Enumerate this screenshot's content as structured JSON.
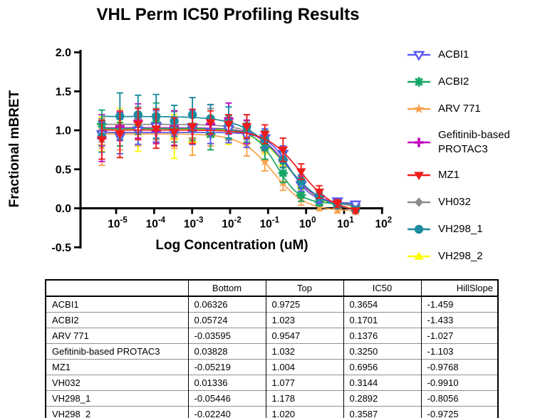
{
  "title": "VHL Perm IC50 Profiling Results",
  "chart_data": {
    "type": "scatter+line dose-response",
    "title": "VHL Perm IC50 Profiling Results",
    "xlabel": "Log Concentration (uM)",
    "ylabel": "Fractional mBRET",
    "x_scale": "log10",
    "x_tick_exponents": [
      -5,
      -4,
      -3,
      -2,
      -1,
      0,
      1,
      2
    ],
    "y_tick_labels": [
      "2.0",
      "1.5",
      "1.0",
      "0.5",
      "0.0",
      "-0.5"
    ],
    "y_ticks": [
      2.0,
      1.5,
      1.0,
      0.5,
      0.0,
      -0.5
    ],
    "ylim": [
      -0.5,
      2.0
    ],
    "grid": false,
    "legend_position": "right",
    "x_log10": [
      -5.377,
      -4.9,
      -4.423,
      -3.946,
      -3.469,
      -2.992,
      -2.515,
      -2.038,
      -1.561,
      -1.084,
      -0.607,
      -0.13,
      0.347,
      0.824,
      1.301
    ],
    "draw_order": [
      7,
      2,
      5,
      3,
      1,
      0,
      6,
      4
    ],
    "series": [
      {
        "name": "ACBI1",
        "color": "#5a5af0",
        "marker": "triangle-down-open",
        "fit": {
          "bottom": 0.06326,
          "top": 0.9725,
          "ic50": 0.3654,
          "hillslope": -1.459
        },
        "y": [
          0.95,
          0.92,
          1.0,
          1.05,
          0.97,
          1.04,
          0.98,
          1.02,
          0.93,
          0.9,
          0.7,
          0.3,
          0.12,
          0.09,
          0.05
        ],
        "err": [
          0.15,
          0.22,
          0.18,
          0.2,
          0.16,
          0.22,
          0.15,
          0.18,
          0.15,
          0.12,
          0.1,
          0.08,
          0.05,
          0.04,
          0.03
        ]
      },
      {
        "name": "ACBI2",
        "color": "#16a566",
        "marker": "asterisk",
        "fit": {
          "bottom": 0.05724,
          "top": 1.023,
          "ic50": 0.1701,
          "hillslope": -1.433
        },
        "y": [
          1.08,
          0.95,
          1.02,
          1.1,
          1.0,
          1.05,
          0.95,
          1.04,
          0.97,
          0.78,
          0.45,
          0.17,
          0.08,
          0.06,
          0.03
        ],
        "err": [
          0.18,
          0.15,
          0.2,
          0.25,
          0.15,
          0.18,
          0.2,
          0.15,
          0.12,
          0.15,
          0.12,
          0.08,
          0.05,
          0.04,
          0.03
        ]
      },
      {
        "name": "ARV 771",
        "color": "#f9a24b",
        "marker": "star",
        "fit": {
          "bottom": -0.03595,
          "top": 0.9547,
          "ic50": 0.1376,
          "hillslope": -1.027
        },
        "y": [
          0.8,
          0.95,
          0.98,
          1.05,
          0.92,
          0.88,
          0.95,
          1.02,
          0.82,
          0.6,
          0.33,
          0.12,
          0.02,
          -0.02,
          -0.04
        ],
        "err": [
          0.25,
          0.2,
          0.18,
          0.22,
          0.15,
          0.2,
          0.15,
          0.18,
          0.15,
          0.12,
          0.1,
          0.08,
          0.05,
          0.04,
          0.03
        ]
      },
      {
        "name": "Gefitinib-based PROTAC3",
        "color": "#c00cc0",
        "marker": "plus",
        "fit": {
          "bottom": 0.03828,
          "top": 1.032,
          "ic50": 0.325,
          "hillslope": -1.103
        },
        "y": [
          0.9,
          1.05,
          1.12,
          0.98,
          1.05,
          1.0,
          1.08,
          1.15,
          0.98,
          0.86,
          0.62,
          0.33,
          0.15,
          0.07,
          0.04
        ],
        "err": [
          0.3,
          0.18,
          0.22,
          0.15,
          0.2,
          0.18,
          0.25,
          0.2,
          0.15,
          0.12,
          0.1,
          0.08,
          0.06,
          0.04,
          0.03
        ]
      },
      {
        "name": "MZ1",
        "color": "#ee1c1c",
        "marker": "triangle-down",
        "fit": {
          "bottom": -0.05219,
          "top": 1.004,
          "ic50": 0.6956,
          "hillslope": -0.9768
        },
        "y": [
          0.88,
          0.95,
          1.08,
          1.02,
          0.98,
          1.05,
          1.1,
          1.08,
          1.05,
          0.95,
          0.75,
          0.47,
          0.21,
          0.06,
          -0.03
        ],
        "err": [
          0.25,
          0.3,
          0.2,
          0.25,
          0.18,
          0.22,
          0.15,
          0.12,
          0.15,
          0.12,
          0.15,
          0.1,
          0.08,
          0.05,
          0.03
        ]
      },
      {
        "name": "VH032",
        "color": "#8c8c8c",
        "marker": "diamond",
        "fit": {
          "bottom": 0.01336,
          "top": 1.077,
          "ic50": 0.3144,
          "hillslope": -0.991
        },
        "y": [
          1.0,
          1.05,
          1.15,
          1.08,
          1.12,
          1.05,
          1.1,
          1.02,
          1.0,
          0.88,
          0.65,
          0.35,
          0.15,
          0.06,
          0.02
        ],
        "err": [
          0.15,
          0.18,
          0.15,
          0.2,
          0.12,
          0.15,
          0.18,
          0.15,
          0.12,
          0.1,
          0.12,
          0.08,
          0.05,
          0.04,
          0.03
        ]
      },
      {
        "name": "VH298_1",
        "color": "#1b8b9f",
        "marker": "circle",
        "fit": {
          "bottom": -0.05446,
          "top": 1.178,
          "ic50": 0.2892,
          "hillslope": -0.8056
        },
        "y": [
          0.92,
          1.18,
          1.2,
          1.18,
          1.12,
          1.2,
          1.15,
          1.1,
          1.05,
          0.88,
          0.62,
          0.35,
          0.15,
          0.04,
          -0.02
        ],
        "err": [
          0.2,
          0.3,
          0.25,
          0.28,
          0.2,
          0.22,
          0.18,
          0.2,
          0.15,
          0.12,
          0.1,
          0.08,
          0.05,
          0.04,
          0.03
        ]
      },
      {
        "name": "VH298_2",
        "color": "#fdfd02",
        "marker": "triangle-up",
        "fit": {
          "bottom": -0.0224,
          "top": 1.02,
          "ic50": 0.3587,
          "hillslope": -0.9725
        },
        "y": [
          0.95,
          1.1,
          0.98,
          1.05,
          0.92,
          0.88,
          0.95,
          1.0,
          0.95,
          0.8,
          0.58,
          0.32,
          0.13,
          0.03,
          -0.01
        ],
        "err": [
          0.22,
          0.18,
          0.25,
          0.2,
          0.28,
          0.2,
          0.15,
          0.18,
          0.12,
          0.1,
          0.1,
          0.08,
          0.05,
          0.04,
          0.03
        ]
      }
    ]
  },
  "table": {
    "headers": [
      "",
      "Bottom",
      "Top",
      "IC50",
      "HillSlope"
    ],
    "rows": [
      [
        "ACBI1",
        "0.06326",
        "0.9725",
        "0.3654",
        "-1.459"
      ],
      [
        "ACBI2",
        "0.05724",
        "1.023",
        "0.1701",
        "-1.433"
      ],
      [
        "ARV 771",
        "-0.03595",
        "0.9547",
        "0.1376",
        "-1.027"
      ],
      [
        "Gefitinib-based PROTAC3",
        "0.03828",
        "1.032",
        "0.3250",
        "-1.103"
      ],
      [
        "MZ1",
        "-0.05219",
        "1.004",
        "0.6956",
        "-0.9768"
      ],
      [
        "VH032",
        "0.01336",
        "1.077",
        "0.3144",
        "-0.9910"
      ],
      [
        "VH298_1",
        "-0.05446",
        "1.178",
        "0.2892",
        "-0.8056"
      ],
      [
        "VH298_2",
        "-0.02240",
        "1.020",
        "0.3587",
        "-0.9725"
      ]
    ]
  }
}
